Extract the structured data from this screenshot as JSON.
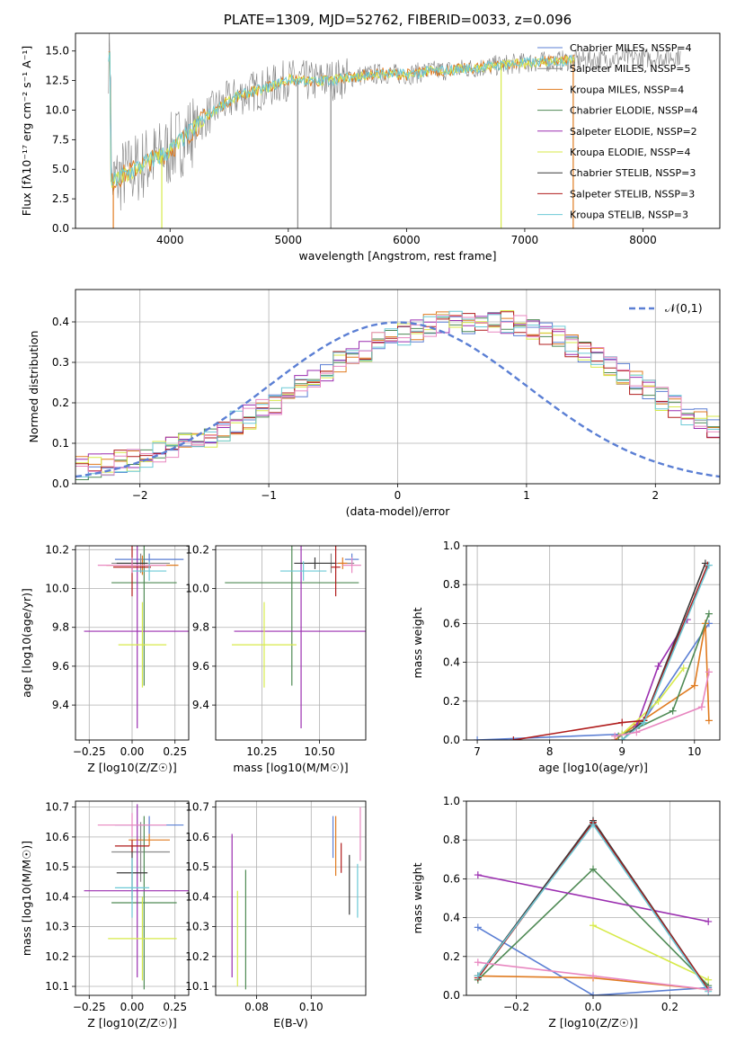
{
  "figure_title": "PLATE=1309, MJD=52762, FIBERID=0033, z=0.096",
  "colors": {
    "chabrier_miles": "#5b7fd4",
    "salpeter_miles": "#8a8a8a",
    "kroupa_miles": "#e07b20",
    "chabrier_elodie": "#4f8a55",
    "salpeter_elodie": "#9b2fb0",
    "kroupa_elodie": "#d7ea4a",
    "chabrier_stelib": "#3a3a3a",
    "salpeter_stelib": "#b01c1c",
    "kroupa_stelib": "#6cc9d6",
    "pink": "#e887c0",
    "data": "#808080"
  },
  "chart_data": [
    {
      "type": "line",
      "title": "PLATE=1309, MJD=52762, FIBERID=0033, z=0.096",
      "xlabel": "wavelength [Angstrom, rest frame]",
      "ylabel": "Flux [fλ10⁻¹⁷ erg cm⁻² s⁻¹ A⁻¹]",
      "xlim": [
        3200,
        8650
      ],
      "ylim": [
        0,
        16.5
      ],
      "xticks": [
        "4000",
        "5000",
        "6000",
        "7000",
        "8000"
      ],
      "yticks": [
        "0.0",
        "2.5",
        "5.0",
        "7.5",
        "10.0",
        "12.5",
        "15.0"
      ],
      "spectrum_x": [
        3500,
        3600,
        3700,
        3800,
        3900,
        4000,
        4100,
        4200,
        4300,
        4400,
        4500,
        4600,
        4700,
        4800,
        4900,
        5000,
        5200,
        5400,
        5600,
        5800,
        6000,
        6200,
        6400,
        6600,
        6800,
        7000,
        7200,
        7400,
        7600,
        7800,
        8000,
        8200,
        8300
      ],
      "spectrum_y": [
        3.8,
        4.5,
        5.0,
        5.6,
        6.0,
        6.6,
        7.5,
        8.4,
        9.4,
        10.2,
        10.8,
        11.3,
        11.6,
        11.8,
        12.2,
        12.6,
        12.4,
        12.6,
        12.9,
        13.1,
        13.0,
        13.3,
        13.4,
        13.6,
        13.8,
        14.0,
        14.1,
        14.2,
        14.3,
        14.4,
        14.4,
        14.5,
        14.6
      ],
      "legend_entries": [
        "Chabrier MILES, NSSP=4",
        "Salpeter MILES, NSSP=5",
        "Kroupa MILES, NSSP=4",
        "Chabrier ELODIE, NSSP=4",
        "Salpeter ELODIE, NSSP=2",
        "Kroupa ELODIE, NSSP=4",
        "Chabrier STELIB, NSSP=3",
        "Salpeter STELIB, NSSP=3",
        "Kroupa STELIB, NSSP=3"
      ],
      "legend_placement": "right"
    },
    {
      "type": "bar",
      "xlabel": "(data-model)/error",
      "ylabel": "Normed distribution",
      "xlim": [
        -2.5,
        2.5
      ],
      "ylim": [
        0,
        0.48
      ],
      "xticks": [
        "−2",
        "−1",
        "0",
        "1",
        "2"
      ],
      "yticks": [
        "0.0",
        "0.1",
        "0.2",
        "0.3",
        "0.4"
      ],
      "grid": true,
      "legend_entries": [
        "𝒩(0,1)"
      ],
      "legend_placement": "top-right",
      "bin_width": 0.1,
      "hist_mean": [
        0.04,
        0.045,
        0.05,
        0.055,
        0.06,
        0.065,
        0.075,
        0.085,
        0.095,
        0.105,
        0.12,
        0.135,
        0.15,
        0.165,
        0.18,
        0.2,
        0.22,
        0.24,
        0.26,
        0.28,
        0.3,
        0.32,
        0.33,
        0.35,
        0.36,
        0.37,
        0.38,
        0.39,
        0.395,
        0.4,
        0.4,
        0.405,
        0.4,
        0.4,
        0.39,
        0.38,
        0.37,
        0.36,
        0.34,
        0.33,
        0.31,
        0.29,
        0.27,
        0.25,
        0.23,
        0.21,
        0.19,
        0.17,
        0.155,
        0.14,
        0.125,
        0.11,
        0.1,
        0.09,
        0.08,
        0.07,
        0.06,
        0.055,
        0.05,
        0.045
      ]
    },
    {
      "type": "scatter",
      "xlabel": "Z [log10(Z/Z☉)]",
      "ylabel": "age  [log10(age/yr)]",
      "xlim": [
        -0.33,
        0.33
      ],
      "ylim": [
        9.22,
        10.22
      ],
      "xticks": [
        "−0.25",
        "0.00",
        "0.25"
      ],
      "xtick_values": [
        -0.25,
        0,
        0.25
      ],
      "yticks": [
        "9.4",
        "9.6",
        "9.8",
        "10.0",
        "10.2"
      ],
      "ytick_values": [
        9.4,
        9.6,
        9.8,
        10.0,
        10.2
      ],
      "grid": true,
      "points": [
        {
          "c": "chabrier_miles",
          "x": 0.1,
          "xe": 0.2,
          "y": 10.15,
          "ye": 0.03
        },
        {
          "c": "salpeter_miles",
          "x": 0.05,
          "xe": 0.17,
          "y": 10.13,
          "ye": 0.05
        },
        {
          "c": "kroupa_miles",
          "x": 0.06,
          "xe": 0.21,
          "y": 10.12,
          "ye": 0.05
        },
        {
          "c": "chabrier_elodie",
          "x": 0.07,
          "xe": 0.19,
          "y": 10.03,
          "ye": 0.53
        },
        {
          "c": "salpeter_elodie",
          "x": 0.03,
          "xe": 0.31,
          "y": 9.78,
          "ye": 0.5
        },
        {
          "c": "kroupa_elodie",
          "x": 0.06,
          "xe": 0.14,
          "y": 9.71,
          "ye": 0.22
        },
        {
          "c": "chabrier_stelib",
          "x": 0.0,
          "xe": 0.09,
          "y": 10.13,
          "ye": 0.03
        },
        {
          "c": "salpeter_stelib",
          "x": 0.0,
          "xe": 0.11,
          "y": 10.11,
          "ye": 0.15
        },
        {
          "c": "kroupa_stelib",
          "x": 0.1,
          "xe": 0.1,
          "y": 10.09,
          "ye": 0.05
        },
        {
          "c": "pink",
          "x": 0.0,
          "xe": 0.2,
          "y": 10.12,
          "ye": 0.04
        }
      ]
    },
    {
      "type": "scatter",
      "xlabel": "mass [log10(M/M☉)]",
      "ylabel": "",
      "xlim": [
        10.05,
        10.7
      ],
      "ylim": [
        9.22,
        10.22
      ],
      "xticks": [
        "10.25",
        "10.50"
      ],
      "xtick_values": [
        10.25,
        10.5
      ],
      "yticks": [
        "9.4",
        "9.6",
        "9.8",
        "10.0",
        "10.2"
      ],
      "ytick_values": [
        9.4,
        9.6,
        9.8,
        10.0,
        10.2
      ],
      "grid": true,
      "points": [
        {
          "c": "chabrier_miles",
          "x": 10.64,
          "xe": 0.03,
          "y": 10.15,
          "ye": 0.03
        },
        {
          "c": "salpeter_miles",
          "x": 10.55,
          "xe": 0.1,
          "y": 10.13,
          "ye": 0.05
        },
        {
          "c": "kroupa_miles",
          "x": 10.6,
          "xe": 0.02,
          "y": 10.13,
          "ye": 0.03
        },
        {
          "c": "chabrier_elodie",
          "x": 10.38,
          "xe": 0.29,
          "y": 10.03,
          "ye": 0.53
        },
        {
          "c": "salpeter_elodie",
          "x": 10.42,
          "xe": 0.29,
          "y": 9.78,
          "ye": 0.5
        },
        {
          "c": "kroupa_elodie",
          "x": 10.26,
          "xe": 0.14,
          "y": 9.71,
          "ye": 0.22
        },
        {
          "c": "chabrier_stelib",
          "x": 10.48,
          "xe": 0.09,
          "y": 10.13,
          "ye": 0.03
        },
        {
          "c": "salpeter_stelib",
          "x": 10.57,
          "xe": 0.02,
          "y": 10.11,
          "ye": 0.15
        },
        {
          "c": "kroupa_stelib",
          "x": 10.43,
          "xe": 0.1,
          "y": 10.09,
          "ye": 0.05
        },
        {
          "c": "pink",
          "x": 10.64,
          "xe": 0.04,
          "y": 10.12,
          "ye": 0.04
        }
      ]
    },
    {
      "type": "line",
      "xlabel": "age  [log10(age/yr)]",
      "ylabel": "mass weight",
      "xlim": [
        6.85,
        10.35
      ],
      "ylim": [
        0,
        1.0
      ],
      "xticks": [
        "7",
        "8",
        "9",
        "10"
      ],
      "xtick_values": [
        7,
        8,
        9,
        10
      ],
      "yticks": [
        "0.0",
        "0.2",
        "0.4",
        "0.6",
        "0.8",
        "1.0"
      ],
      "ytick_values": [
        0,
        0.2,
        0.4,
        0.6,
        0.8,
        1.0
      ],
      "grid": true,
      "series": [
        {
          "c": "chabrier_miles",
          "x": [
            7.0,
            9.0,
            9.3,
            10.2
          ],
          "y": [
            0.0,
            0.03,
            0.1,
            0.6
          ]
        },
        {
          "c": "kroupa_miles",
          "x": [
            8.9,
            9.2,
            10.0,
            10.15,
            10.2
          ],
          "y": [
            0.0,
            0.08,
            0.28,
            0.6,
            0.1
          ]
        },
        {
          "c": "chabrier_elodie",
          "x": [
            8.95,
            9.2,
            9.7,
            10.2
          ],
          "y": [
            0.02,
            0.06,
            0.15,
            0.65
          ]
        },
        {
          "c": "salpeter_elodie",
          "x": [
            9.2,
            9.5,
            9.9
          ],
          "y": [
            0.07,
            0.38,
            0.62
          ]
        },
        {
          "c": "kroupa_elodie",
          "x": [
            9.0,
            9.5,
            9.85
          ],
          "y": [
            0.03,
            0.2,
            0.37
          ]
        },
        {
          "c": "chabrier_stelib",
          "x": [
            9.0,
            9.3,
            10.15
          ],
          "y": [
            0.0,
            0.1,
            0.91
          ]
        },
        {
          "c": "salpeter_stelib",
          "x": [
            7.5,
            9.0,
            9.3,
            10.18
          ],
          "y": [
            0.0,
            0.09,
            0.1,
            0.9
          ]
        },
        {
          "c": "kroupa_stelib",
          "x": [
            9.0,
            9.3,
            10.2
          ],
          "y": [
            0.0,
            0.09,
            0.9
          ]
        },
        {
          "c": "pink",
          "x": [
            8.9,
            9.2,
            10.1,
            10.2
          ],
          "y": [
            0.02,
            0.04,
            0.17,
            0.35
          ]
        }
      ]
    },
    {
      "type": "scatter",
      "xlabel": "Z [log10(Z/Z☉)]",
      "ylabel": "mass [log10(M/M☉)]",
      "xlim": [
        -0.33,
        0.33
      ],
      "ylim": [
        10.07,
        10.72
      ],
      "xticks": [
        "−0.25",
        "0.00",
        "0.25"
      ],
      "xtick_values": [
        -0.25,
        0,
        0.25
      ],
      "yticks": [
        "10.1",
        "10.2",
        "10.3",
        "10.4",
        "10.5",
        "10.6",
        "10.7"
      ],
      "ytick_values": [
        10.1,
        10.2,
        10.3,
        10.4,
        10.5,
        10.6,
        10.7
      ],
      "grid": true,
      "points": [
        {
          "c": "chabrier_miles",
          "x": 0.1,
          "xe": 0.2,
          "y": 10.64,
          "ye": 0.03
        },
        {
          "c": "salpeter_miles",
          "x": 0.05,
          "xe": 0.17,
          "y": 10.55,
          "ye": 0.1
        },
        {
          "c": "kroupa_miles",
          "x": 0.1,
          "xe": 0.12,
          "y": 10.59,
          "ye": 0.02
        },
        {
          "c": "chabrier_elodie",
          "x": 0.07,
          "xe": 0.19,
          "y": 10.38,
          "ye": 0.29
        },
        {
          "c": "salpeter_elodie",
          "x": 0.03,
          "xe": 0.31,
          "y": 10.42,
          "ye": 0.29
        },
        {
          "c": "kroupa_elodie",
          "x": 0.06,
          "xe": 0.2,
          "y": 10.26,
          "ye": 0.14
        },
        {
          "c": "chabrier_stelib",
          "x": 0.0,
          "xe": 0.09,
          "y": 10.48,
          "ye": 0.09
        },
        {
          "c": "salpeter_stelib",
          "x": 0.0,
          "xe": 0.1,
          "y": 10.57,
          "ye": 0.02
        },
        {
          "c": "kroupa_stelib",
          "x": 0.0,
          "xe": 0.1,
          "y": 10.43,
          "ye": 0.1
        },
        {
          "c": "pink",
          "x": 0.0,
          "xe": 0.2,
          "y": 10.64,
          "ye": 0.04
        }
      ]
    },
    {
      "type": "scatter",
      "xlabel": "E(B-V)",
      "ylabel": "",
      "xlim": [
        0.065,
        0.12
      ],
      "ylim": [
        10.07,
        10.72
      ],
      "xticks": [
        "0.08",
        "0.10"
      ],
      "xtick_values": [
        0.08,
        0.1
      ],
      "yticks": [
        "10.1",
        "10.2",
        "10.3",
        "10.4",
        "10.5",
        "10.6",
        "10.7"
      ],
      "ytick_values": [
        10.1,
        10.2,
        10.3,
        10.4,
        10.5,
        10.6,
        10.7
      ],
      "grid": true,
      "points": [
        {
          "c": "salpeter_elodie",
          "x": 0.071,
          "xe": 0,
          "y": 10.37,
          "ye": 0.24
        },
        {
          "c": "kroupa_elodie",
          "x": 0.073,
          "xe": 0,
          "y": 10.26,
          "ye": 0.16
        },
        {
          "c": "chabrier_elodie",
          "x": 0.076,
          "xe": 0,
          "y": 10.29,
          "ye": 0.2
        },
        {
          "c": "chabrier_miles",
          "x": 0.108,
          "xe": 0,
          "y": 10.6,
          "ye": 0.07
        },
        {
          "c": "kroupa_miles",
          "x": 0.109,
          "xe": 0,
          "y": 10.57,
          "ye": 0.1
        },
        {
          "c": "salpeter_stelib",
          "x": 0.111,
          "xe": 0,
          "y": 10.53,
          "ye": 0.05
        },
        {
          "c": "chabrier_stelib",
          "x": 0.114,
          "xe": 0,
          "y": 10.44,
          "ye": 0.1
        },
        {
          "c": "kroupa_stelib",
          "x": 0.117,
          "xe": 0,
          "y": 10.42,
          "ye": 0.09
        },
        {
          "c": "pink",
          "x": 0.118,
          "xe": 0,
          "y": 10.61,
          "ye": 0.09
        }
      ]
    },
    {
      "type": "line",
      "xlabel": "Z [log10(Z/Z☉)]",
      "ylabel": "mass weight",
      "xlim": [
        -0.33,
        0.33
      ],
      "ylim": [
        0,
        1.0
      ],
      "xticks": [
        "−0.2",
        "0.0",
        "0.2"
      ],
      "xtick_values": [
        -0.2,
        0,
        0.2
      ],
      "yticks": [
        "0.0",
        "0.2",
        "0.4",
        "0.6",
        "0.8",
        "1.0"
      ],
      "ytick_values": [
        0,
        0.2,
        0.4,
        0.6,
        0.8,
        1.0
      ],
      "grid": true,
      "series": [
        {
          "c": "chabrier_miles",
          "x": [
            -0.3,
            0.0,
            0.3
          ],
          "y": [
            0.35,
            0.0,
            0.04
          ]
        },
        {
          "c": "kroupa_miles",
          "x": [
            -0.3,
            0.0,
            0.3
          ],
          "y": [
            0.1,
            0.09,
            0.03
          ]
        },
        {
          "c": "chabrier_elodie",
          "x": [
            -0.3,
            0.0,
            0.3
          ],
          "y": [
            0.08,
            0.65,
            0.05
          ]
        },
        {
          "c": "salpeter_elodie",
          "x": [
            -0.3,
            0.3
          ],
          "y": [
            0.62,
            0.38
          ]
        },
        {
          "c": "kroupa_elodie",
          "x": [
            0.0,
            0.3
          ],
          "y": [
            0.36,
            0.08
          ]
        },
        {
          "c": "chabrier_stelib",
          "x": [
            -0.3,
            0.0,
            0.3
          ],
          "y": [
            0.1,
            0.9,
            0.03
          ]
        },
        {
          "c": "salpeter_stelib",
          "x": [
            -0.3,
            0.0,
            0.3
          ],
          "y": [
            0.09,
            0.89,
            0.03
          ]
        },
        {
          "c": "kroupa_stelib",
          "x": [
            -0.3,
            0.0,
            0.3
          ],
          "y": [
            0.1,
            0.88,
            0.02
          ]
        },
        {
          "c": "pink",
          "x": [
            -0.3,
            0.0,
            0.3
          ],
          "y": [
            0.17,
            0.1,
            0.03
          ]
        }
      ]
    }
  ]
}
